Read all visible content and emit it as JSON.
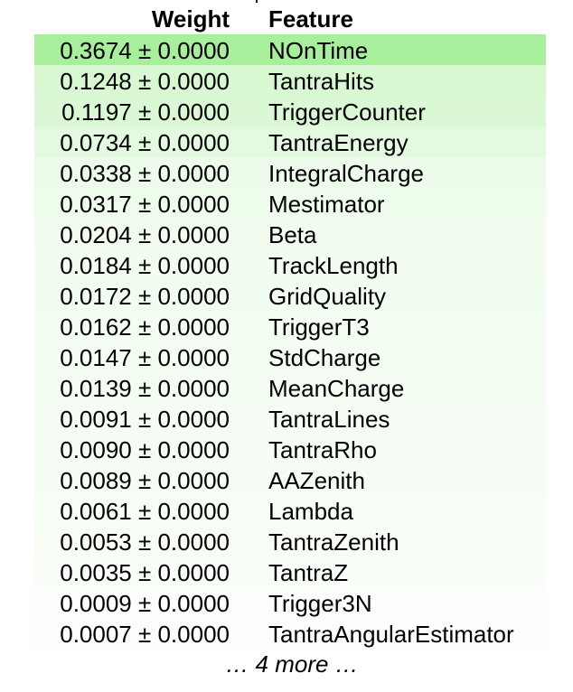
{
  "header": {
    "weight": "Weight",
    "feature": "Feature"
  },
  "rows": [
    {
      "weight": "0.3674 ± 0.0000",
      "feature": "NOnTime",
      "color": "#a8ef9c"
    },
    {
      "weight": "0.1248 ± 0.0000",
      "feature": "TantraHits",
      "color": "#d8f8d2"
    },
    {
      "weight": "0.1197 ± 0.0000",
      "feature": "TriggerCounter",
      "color": "#daf8d4"
    },
    {
      "weight": "0.0734 ± 0.0000",
      "feature": "TantraEnergy",
      "color": "#e3fae0"
    },
    {
      "weight": "0.0338 ± 0.0000",
      "feature": "IntegralCharge",
      "color": "#edfbea"
    },
    {
      "weight": "0.0317 ± 0.0000",
      "feature": "Mestimator",
      "color": "#eefcec"
    },
    {
      "weight": "0.0204 ± 0.0000",
      "feature": "Beta",
      "color": "#f1fcef"
    },
    {
      "weight": "0.0184 ± 0.0000",
      "feature": "TrackLength",
      "color": "#f2fdf0"
    },
    {
      "weight": "0.0172 ± 0.0000",
      "feature": "GridQuality",
      "color": "#f2fdf1"
    },
    {
      "weight": "0.0162 ± 0.0000",
      "feature": "TriggerT3",
      "color": "#f3fdf2"
    },
    {
      "weight": "0.0147 ± 0.0000",
      "feature": "StdCharge",
      "color": "#f3fdf2"
    },
    {
      "weight": "0.0139 ± 0.0000",
      "feature": "MeanCharge",
      "color": "#f4fdf2"
    },
    {
      "weight": "0.0091 ± 0.0000",
      "feature": "TantraLines",
      "color": "#f6fdf4"
    },
    {
      "weight": "0.0090 ± 0.0000",
      "feature": "TantraRho",
      "color": "#f6fdf4"
    },
    {
      "weight": "0.0089 ± 0.0000",
      "feature": "AAZenith",
      "color": "#f6fdf4"
    },
    {
      "weight": "0.0061 ± 0.0000",
      "feature": "Lambda",
      "color": "#f7fef6"
    },
    {
      "weight": "0.0053 ± 0.0000",
      "feature": "TantraZenith",
      "color": "#f8fef6"
    },
    {
      "weight": "0.0035 ± 0.0000",
      "feature": "TantraZ",
      "color": "#f9fef8"
    },
    {
      "weight": "0.0009 ± 0.0000",
      "feature": "Trigger3N",
      "color": "#fbfefa"
    },
    {
      "weight": "0.0007 ± 0.0000",
      "feature": "TantraAngularEstimator",
      "color": "#fbfefa"
    }
  ],
  "more": "… 4 more …"
}
